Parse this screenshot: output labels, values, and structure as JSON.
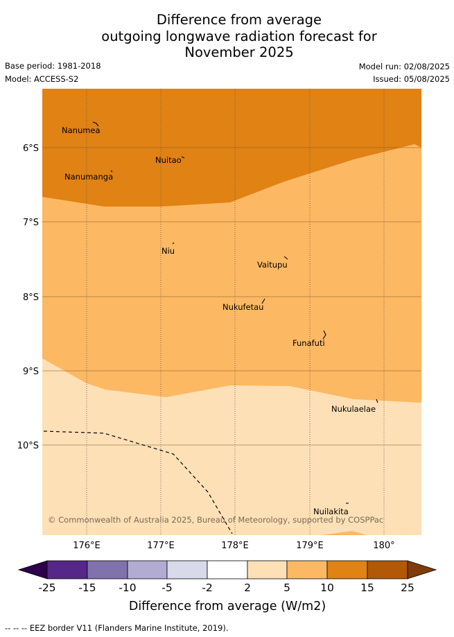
{
  "title": {
    "line1": "Difference from average",
    "line2": "outgoing longwave radiation forecast for",
    "line3": "November 2025"
  },
  "meta": {
    "base_period": "Base period: 1981-2018",
    "model": "Model: ACCESS-S2",
    "model_run": "Model run: 02/08/2025",
    "issued": "Issued: 05/08/2025"
  },
  "map": {
    "longitude_labels": [
      "176°E",
      "177°E",
      "178°E",
      "179°E",
      "180°"
    ],
    "latitude_labels": [
      "6°S",
      "7°S",
      "8°S",
      "9°S",
      "10°S"
    ],
    "places": [
      "Nanumea",
      "Nuitao",
      "Nanumanga",
      "Niu",
      "Vaitupu",
      "Nukufetau",
      "Funafuti",
      "Nukulaelae",
      "Nuilakita"
    ],
    "copyright": "© Commonwealth of Australia 2025, Bureau of Meteorology, supported by COSPPac",
    "region_colors": {
      "10_to_15": "#e08214",
      "5_to_10": "#fdb863",
      "2_to_5": "#fee0b6"
    }
  },
  "colorbar": {
    "ticks": [
      "-25",
      "-15",
      "-10",
      "-5",
      "-2",
      "2",
      "5",
      "10",
      "15",
      "25"
    ],
    "label": "Difference from average (W/m2)",
    "colors": {
      "below_min": "#2d004b",
      "-25_to_-15": "#542788",
      "-15_to_-10": "#8073ac",
      "-10_to_-5": "#b2abd2",
      "-5_to_-2": "#d8daeb",
      "-2_to_2": "#ffffff",
      "2_to_5": "#fee0b6",
      "5_to_10": "#fdb863",
      "10_to_15": "#e08214",
      "15_to_25": "#b35806",
      "above_max": "#7f3b08"
    }
  },
  "footer": {
    "legend": "-- -- -- EEZ border V11 (Flanders Marine Institute, 2019)."
  }
}
